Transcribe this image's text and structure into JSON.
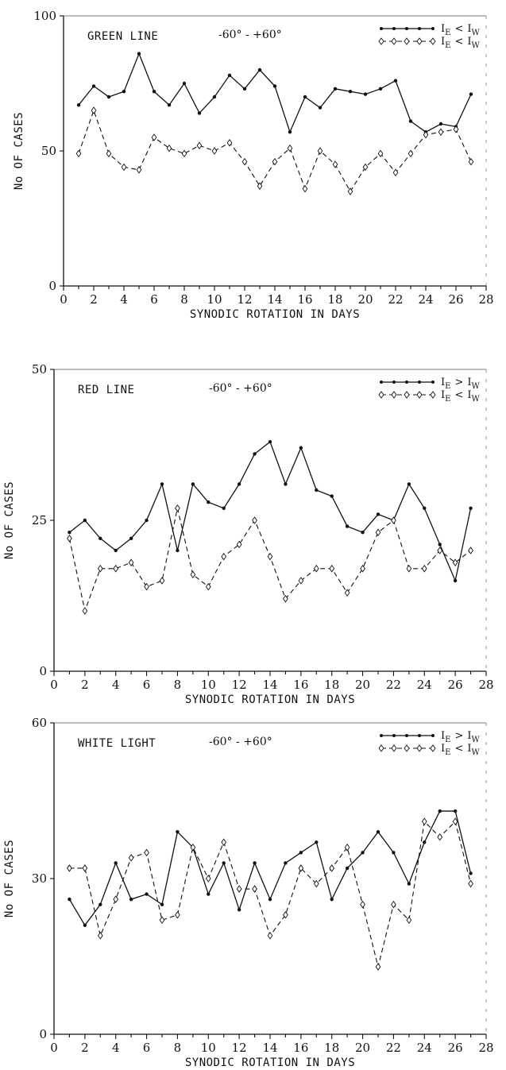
{
  "chart_data": [
    {
      "type": "line",
      "title": "GREEN LINE",
      "subtitle": "-60° - +60°",
      "xlabel": "SYNODIC ROTATION IN DAYS",
      "ylabel": "No OF CASES",
      "xlim": [
        0,
        28
      ],
      "ylim": [
        0,
        100
      ],
      "x_ticks": [
        "0",
        "2",
        "4",
        "6",
        "8",
        "10",
        "12",
        "14",
        "16",
        "18",
        "20",
        "22",
        "24",
        "26",
        "28"
      ],
      "x_minor_ticks": [
        "1",
        "3",
        "5",
        "7",
        "9",
        "11",
        "13",
        "15",
        "17",
        "19",
        "21",
        "23",
        "25",
        "27"
      ],
      "y_ticks": [
        "0",
        "50",
        "100"
      ],
      "legend_position": "top-right",
      "x": [
        1,
        2,
        3,
        4,
        5,
        6,
        7,
        8,
        9,
        10,
        11,
        12,
        13,
        14,
        15,
        16,
        17,
        18,
        19,
        20,
        21,
        22,
        23,
        24,
        25,
        26,
        27
      ],
      "series": [
        {
          "legend": "I",
          "legend_sub1": "E",
          "legend_op": "<",
          "legend_sub2": "W",
          "style": "solid-dots",
          "values": [
            67,
            74,
            70,
            72,
            86,
            72,
            67,
            75,
            64,
            70,
            78,
            73,
            80,
            74,
            57,
            70,
            66,
            73,
            72,
            71,
            73,
            76,
            61,
            57,
            60,
            59,
            71
          ]
        },
        {
          "legend": "I",
          "legend_sub1": "E",
          "legend_op": "<",
          "legend_sub2": "W",
          "style": "dashed-diamonds",
          "values": [
            49,
            65,
            49,
            44,
            43,
            55,
            51,
            49,
            52,
            50,
            53,
            46,
            37,
            46,
            51,
            36,
            50,
            45,
            35,
            44,
            49,
            42,
            49,
            56,
            57,
            58,
            46
          ]
        }
      ]
    },
    {
      "type": "line",
      "title": "RED LINE",
      "subtitle": "-60° - +60°",
      "xlabel": "SYNODIC ROTATION IN DAYS",
      "ylabel": "No OF CASES",
      "xlim": [
        0,
        28
      ],
      "ylim": [
        0,
        50
      ],
      "x_ticks": [
        "0",
        "2",
        "4",
        "6",
        "8",
        "10",
        "12",
        "14",
        "16",
        "18",
        "20",
        "22",
        "24",
        "26",
        "28"
      ],
      "x_minor_ticks": [
        "1",
        "3",
        "5",
        "7",
        "9",
        "11",
        "13",
        "15",
        "17",
        "19",
        "21",
        "23",
        "25",
        "27"
      ],
      "y_ticks": [
        "0",
        "25",
        "50"
      ],
      "legend_position": "top-right",
      "x": [
        1,
        2,
        3,
        4,
        5,
        6,
        7,
        8,
        9,
        10,
        11,
        12,
        13,
        14,
        15,
        16,
        17,
        18,
        19,
        20,
        21,
        22,
        23,
        24,
        25,
        26,
        27
      ],
      "series": [
        {
          "legend": "I",
          "legend_sub1": "E",
          "legend_op": ">",
          "legend_sub2": "W",
          "style": "solid-dots",
          "values": [
            23,
            25,
            22,
            20,
            22,
            25,
            31,
            20,
            31,
            28,
            27,
            31,
            36,
            38,
            31,
            37,
            30,
            29,
            24,
            23,
            26,
            25,
            31,
            27,
            21,
            15,
            27
          ]
        },
        {
          "legend": "I",
          "legend_sub1": "E",
          "legend_op": "<",
          "legend_sub2": "W",
          "style": "dashed-diamonds",
          "values": [
            22,
            10,
            17,
            17,
            18,
            14,
            15,
            27,
            16,
            14,
            19,
            21,
            25,
            19,
            12,
            15,
            17,
            17,
            13,
            17,
            23,
            25,
            17,
            17,
            20,
            18,
            20
          ]
        }
      ]
    },
    {
      "type": "line",
      "title": "WHITE LIGHT",
      "subtitle": "-60° - +60°",
      "xlabel": "SYNODIC ROTATION IN DAYS",
      "ylabel": "No OF CASES",
      "xlim": [
        0,
        28
      ],
      "ylim": [
        0,
        60
      ],
      "x_ticks": [
        "0",
        "2",
        "4",
        "6",
        "8",
        "10",
        "12",
        "14",
        "16",
        "18",
        "20",
        "22",
        "24",
        "26",
        "28"
      ],
      "x_minor_ticks": [
        "1",
        "3",
        "5",
        "7",
        "9",
        "11",
        "13",
        "15",
        "17",
        "19",
        "21",
        "23",
        "25",
        "27"
      ],
      "y_ticks": [
        "0",
        "30",
        "60"
      ],
      "legend_position": "top-right",
      "x": [
        1,
        2,
        3,
        4,
        5,
        6,
        7,
        8,
        9,
        10,
        11,
        12,
        13,
        14,
        15,
        16,
        17,
        18,
        19,
        20,
        21,
        22,
        23,
        24,
        25,
        26,
        27
      ],
      "series": [
        {
          "legend": "I",
          "legend_sub1": "E",
          "legend_op": ">",
          "legend_sub2": "W",
          "style": "solid-dots",
          "values": [
            26,
            21,
            25,
            33,
            26,
            27,
            25,
            39,
            36,
            27,
            33,
            24,
            33,
            26,
            33,
            35,
            37,
            26,
            32,
            35,
            39,
            35,
            29,
            37,
            43,
            43,
            31
          ]
        },
        {
          "legend": "I",
          "legend_sub1": "E",
          "legend_op": "<",
          "legend_sub2": "W",
          "style": "dashed-diamonds",
          "values": [
            32,
            32,
            19,
            26,
            34,
            35,
            22,
            23,
            36,
            30,
            37,
            28,
            28,
            19,
            23,
            32,
            29,
            32,
            36,
            25,
            13,
            25,
            22,
            41,
            38,
            41,
            29
          ]
        }
      ]
    }
  ]
}
